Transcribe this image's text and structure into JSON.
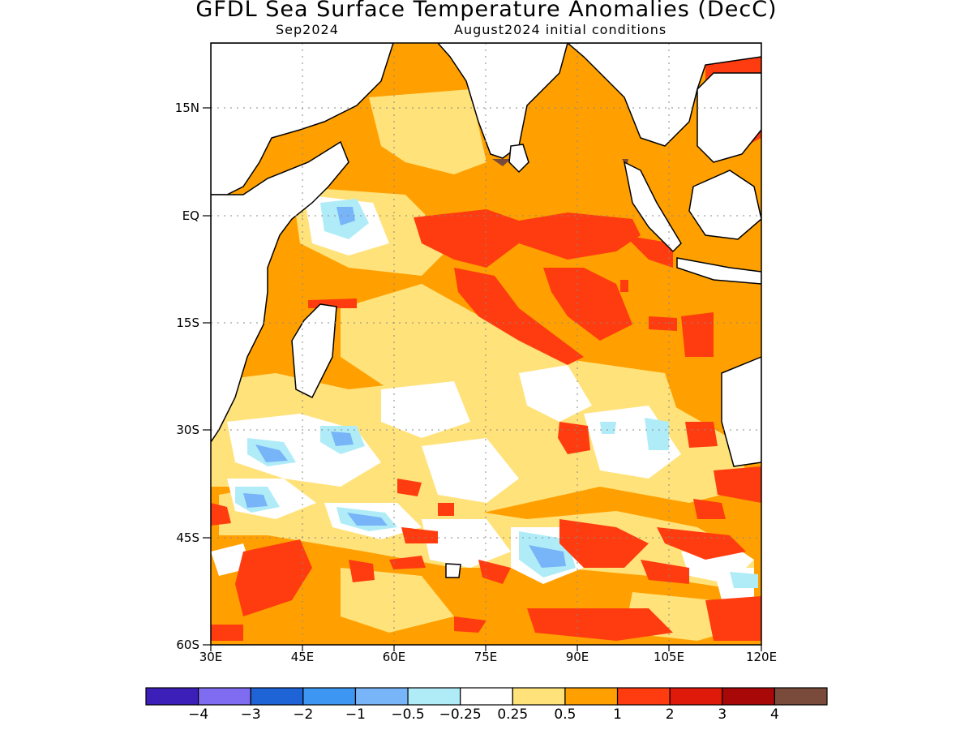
{
  "title": "GFDL Sea Surface Temperature Anomalies (DecC)",
  "subtitle_left": "Sep2024",
  "subtitle_right": "August2024 initial conditions",
  "map": {
    "region": "Indian Ocean",
    "lon_range": [
      30,
      120
    ],
    "lat_range": [
      -60,
      24
    ],
    "y_ticks": [
      "15N",
      "EQ",
      "15S",
      "30S",
      "45S",
      "60S"
    ],
    "x_ticks": [
      "30E",
      "45E",
      "60E",
      "75E",
      "90E",
      "105E",
      "120E"
    ],
    "grid": "dotted",
    "land_color": "#ffffff"
  },
  "colorbar": {
    "colors": [
      "#3b1fb8",
      "#7f6cf0",
      "#1e64d6",
      "#3c96f2",
      "#78b4f8",
      "#b0ecf8",
      "#ffffff",
      "#ffe27a",
      "#ffa000",
      "#ff3c0f",
      "#e01a0a",
      "#a80808",
      "#7a4a3a"
    ],
    "labels": [
      "−4",
      "−3",
      "−2",
      "−1",
      "−0.5",
      "−0.25",
      "0.25",
      "0.5",
      "1",
      "2",
      "3",
      "4"
    ]
  }
}
